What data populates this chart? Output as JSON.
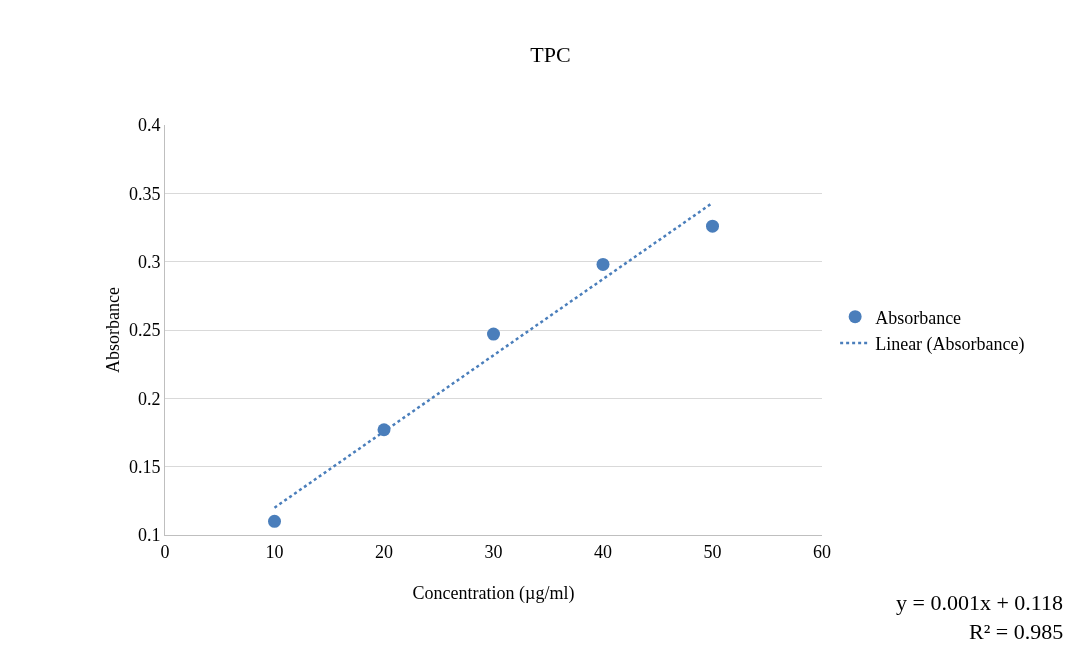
{
  "chart_data": {
    "type": "scatter",
    "title": "TPC",
    "xlabel": "Concentration (µg/ml)",
    "ylabel": "Absorbance",
    "x": [
      10,
      20,
      30,
      40,
      50
    ],
    "series": [
      {
        "name": "Absorbance",
        "color": "#4a7ebb",
        "values": [
          0.11,
          0.177,
          0.247,
          0.298,
          0.326
        ],
        "marker": "circle"
      },
      {
        "name": "Linear (Absorbance)",
        "type": "line",
        "color": "#4a7ebb",
        "x": [
          10,
          50
        ],
        "values": [
          0.12,
          0.343
        ],
        "line_style": "dotted",
        "marker": "none"
      }
    ],
    "xlim": [
      0,
      60
    ],
    "xticks": [
      0,
      10,
      20,
      30,
      40,
      50,
      60
    ],
    "ylim": [
      0.1,
      0.4
    ],
    "yticks": [
      0.1,
      0.15,
      0.2,
      0.25,
      0.3,
      0.35,
      0.4
    ],
    "grid": "y",
    "legend": "right",
    "annotations": [
      "y = 0.001x + 0.118",
      "R² = 0.985"
    ]
  }
}
